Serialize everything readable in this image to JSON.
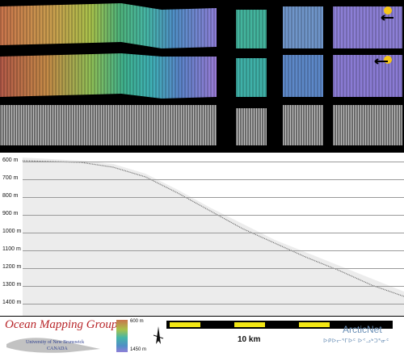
{
  "profile": {
    "depth_labels": [
      "600 m",
      "700 m",
      "800 m",
      "900 m",
      "1000 m",
      "1100 m",
      "1200 m",
      "1300 m",
      "1400 m"
    ]
  },
  "footer": {
    "logo_title": "Ocean Mapping Group",
    "logo_university": "University of New Brunswick",
    "logo_country": "CANADA",
    "colorbar_top_label": "600 m",
    "colorbar_bottom_label": "1450 m",
    "scale_label": "10 km",
    "arcticnet_title": "ArcticNet",
    "arcticnet_syllabics": "ᐅᑭᐅᓕᕐᒥᐅᑦ ᐅᕝᓗᒃᑐᕐᓂᑦ"
  }
}
